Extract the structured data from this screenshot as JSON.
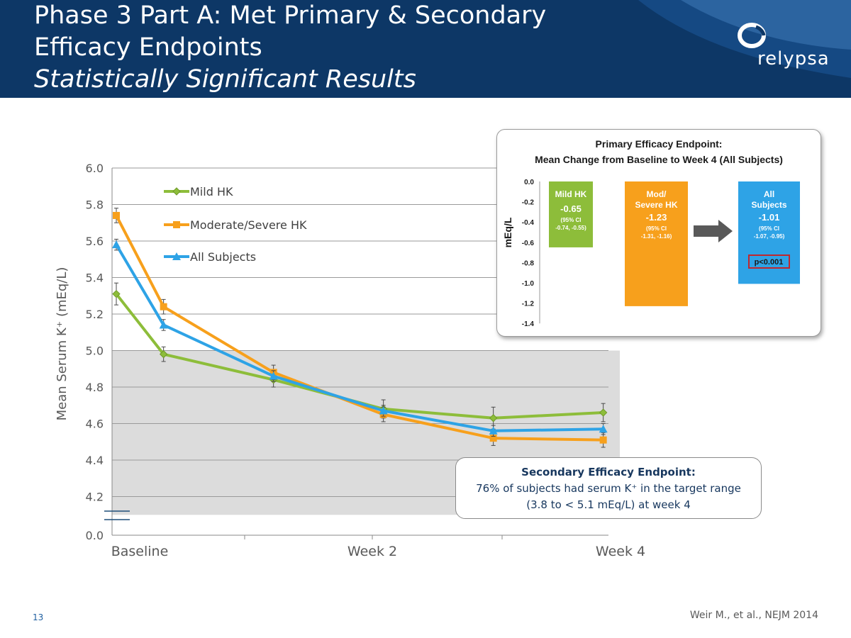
{
  "slide": {
    "title_line1": "Phase 3 Part A: Met Primary & Secondary",
    "title_line2": "Efficacy Endpoints",
    "title_line3": "Statistically Significant Results",
    "logo_text": "relypsa",
    "page_number": "13",
    "citation": "Weir M., et al., NEJM 2014"
  },
  "colors": {
    "header_bg": "#0d3766",
    "mild": "#8dbd3a",
    "moderate": "#f7a01c",
    "all": "#2ea3e6",
    "target_band": "#dcdcdc"
  },
  "secondary_callout": {
    "title": "Secondary Efficacy Endpoint:",
    "line1": "76% of subjects had serum K⁺ in the target range",
    "line2": "(3.8 to < 5.1 mEq/L) at week 4"
  },
  "chart_data": [
    {
      "type": "line",
      "ylabel": "Mean Serum K⁺ (mEq/L)",
      "xlabel": "",
      "y_ticks": [
        "0.0",
        "4.2",
        "4.4",
        "4.6",
        "4.8",
        "5.0",
        "5.2",
        "5.4",
        "5.6",
        "5.8",
        "6.0"
      ],
      "ylim": [
        4.1,
        6.0
      ],
      "y_axis_break": true,
      "x_tick_labels": [
        "Baseline",
        "Week 2",
        "Week 4"
      ],
      "x_timepoints": [
        0,
        0.43,
        1.43,
        2.43,
        3.43,
        4.43
      ],
      "target_band": [
        4.1,
        5.0
      ],
      "grid": true,
      "legend_position": "top-left",
      "series": [
        {
          "name": "Mild HK",
          "marker": "diamond",
          "values": [
            5.31,
            4.98,
            4.84,
            4.68,
            4.63,
            4.66
          ],
          "err": [
            0.06,
            0.04,
            0.04,
            0.05,
            0.06,
            0.05
          ]
        },
        {
          "name": "Moderate/Severe HK",
          "marker": "square",
          "values": [
            5.74,
            5.24,
            4.88,
            4.65,
            4.52,
            4.51
          ],
          "err": [
            0.04,
            0.04,
            0.04,
            0.04,
            0.04,
            0.04
          ]
        },
        {
          "name": "All Subjects",
          "marker": "triangle",
          "values": [
            5.58,
            5.14,
            4.86,
            4.67,
            4.56,
            4.57
          ],
          "err": [
            0.03,
            0.03,
            0.03,
            0.03,
            0.03,
            0.03
          ]
        }
      ]
    },
    {
      "type": "bar",
      "title_line1": "Primary Efficacy Endpoint:",
      "title_line2": "Mean Change from Baseline to Week 4 (All Subjects)",
      "ylabel": "mEq/L",
      "ylim": [
        -1.4,
        0.0
      ],
      "y_ticks": [
        "0.0",
        "-0.2",
        "-0.4",
        "-0.6",
        "-0.8",
        "-1.0",
        "-1.2",
        "-1.4"
      ],
      "bars": [
        {
          "name_line1": "Mild HK",
          "name_line2": "",
          "value": -0.65,
          "value_label": "-0.65",
          "ci_title": "(95% CI",
          "ci": "-0.74, -0.55)",
          "color": "#8dbd3a"
        },
        {
          "name_line1": "Mod/",
          "name_line2": "Severe HK",
          "value": -1.23,
          "value_label": "-1.23",
          "ci_title": "(95% CI",
          "ci": "-1.31, -1.16)",
          "color": "#f7a01c"
        },
        {
          "name_line1": "All",
          "name_line2": "Subjects",
          "value": -1.01,
          "value_label": "-1.01",
          "ci_title": "(95% CI",
          "ci": "-1.07, -0.95)",
          "color": "#2ea3e6"
        }
      ],
      "p_value": "p<0.001"
    }
  ]
}
